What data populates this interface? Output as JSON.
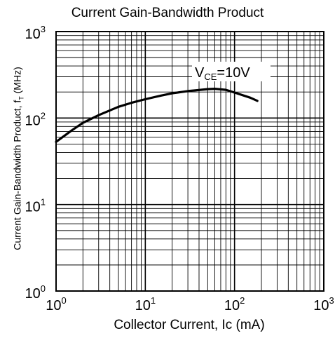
{
  "chart_data": {
    "type": "line",
    "title": "Current Gain-Bandwidth Product",
    "xlabel": "Collector Current, Ic (mA)",
    "ylabel": {
      "main": "Current Gain-Bandwidth Product, f",
      "sub": "T",
      "unit": " (MHz)"
    },
    "x_scale": "log",
    "y_scale": "log",
    "xlim": [
      1,
      1000
    ],
    "ylim": [
      1,
      1000
    ],
    "grid": true,
    "x_ticks": [
      {
        "base": "10",
        "exp": "0"
      },
      {
        "base": "10",
        "exp": "1"
      },
      {
        "base": "10",
        "exp": "2"
      },
      {
        "base": "10",
        "exp": "3"
      }
    ],
    "y_ticks": [
      {
        "base": "10",
        "exp": "0"
      },
      {
        "base": "10",
        "exp": "1"
      },
      {
        "base": "10",
        "exp": "2"
      },
      {
        "base": "10",
        "exp": "3"
      }
    ],
    "annotation": {
      "prefix": "V",
      "sub": "CE",
      "suffix": "=10V"
    },
    "series": [
      {
        "x": [
          1,
          1.5,
          2,
          3,
          5,
          7,
          10,
          15,
          20,
          30,
          50,
          60,
          80,
          100,
          150,
          180
        ],
        "y": [
          53,
          72,
          88,
          108,
          135,
          150,
          165,
          182,
          193,
          205,
          216,
          218,
          212,
          197,
          172,
          158
        ]
      }
    ]
  }
}
